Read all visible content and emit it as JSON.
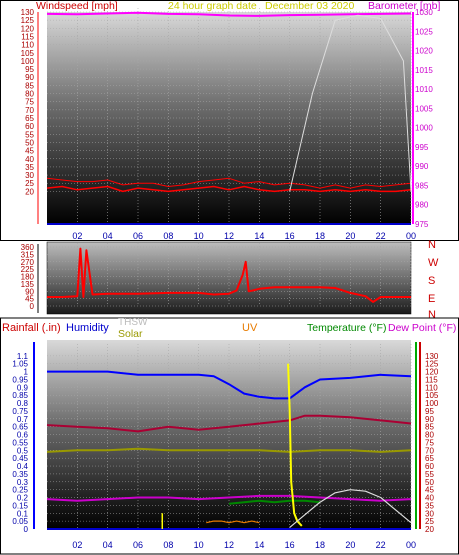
{
  "header": {
    "windspeed_label": "Windspeed [mph]",
    "graph_date": "24 hour graph date",
    "date": "December 03 2020",
    "barometer_label": "Barometer [mb]"
  },
  "compass_labels": [
    "N",
    "W",
    "S",
    "E",
    "N"
  ],
  "bottom_legend": {
    "rainfall": "Rainfall (.in)",
    "humidity": "Humidity",
    "thsw": "THSW",
    "solar": "Solar",
    "uv": "UV",
    "temperature": "Temperature (°F)",
    "dew_point": "Dew Point (°F)"
  },
  "colors": {
    "windspeed": "#ff0000",
    "gust": "#ff0000",
    "barometer": "#ff00ff",
    "direction": "#ff0000",
    "humidity": "#0000ff",
    "temperature": "#aa0033",
    "dew_point": "#cc00cc",
    "thsw": "#999900",
    "solar": "#e87b00",
    "uv": "#ffff00",
    "extra": "#dddddd",
    "green": "#008800"
  },
  "chart_data": [
    {
      "type": "line",
      "id": "wind_barometer",
      "x_tick_labels": [
        "02",
        "04",
        "06",
        "08",
        "10",
        "12",
        "14",
        "16",
        "18",
        "20",
        "22",
        "00"
      ],
      "xlim": [
        0,
        24
      ],
      "y_left": {
        "label": "Windspeed [mph]",
        "ylim": [
          0,
          130
        ],
        "ticks": [
          20,
          25,
          30,
          35,
          40,
          45,
          50,
          55,
          60,
          65,
          70,
          75,
          80,
          85,
          90,
          95,
          100,
          105,
          110,
          115,
          120,
          125,
          130
        ]
      },
      "y_right": {
        "label": "Barometer [mb]",
        "ylim": [
          975,
          1030
        ],
        "ticks": [
          975,
          980,
          985,
          990,
          995,
          1000,
          1005,
          1010,
          1015,
          1020,
          1025,
          1030
        ]
      },
      "series": [
        {
          "name": "Barometer [mb]",
          "axis": "right",
          "x": [
            0,
            2,
            4,
            6,
            8,
            10,
            12,
            14,
            16,
            18,
            20,
            22,
            24
          ],
          "values": [
            1029.5,
            1029.4,
            1029.6,
            1029.8,
            1029.5,
            1029.4,
            1029.1,
            1029.0,
            1029.2,
            1029.3,
            1029.4,
            1029.5,
            1029.6
          ]
        },
        {
          "name": "Windspeed [mph]",
          "axis": "left",
          "x": [
            0,
            1,
            2,
            3,
            4,
            5,
            6,
            7,
            8,
            9,
            10,
            11,
            12,
            13,
            14,
            15,
            16,
            17,
            18,
            19,
            20,
            21,
            22,
            23,
            24
          ],
          "values": [
            22,
            23,
            21,
            22,
            23,
            20,
            22,
            21,
            20,
            21,
            22,
            23,
            21,
            23,
            21,
            20,
            21,
            21,
            20,
            21,
            20,
            21,
            20,
            20,
            21
          ]
        },
        {
          "name": "",
          "axis": "left",
          "x": [
            0,
            1,
            2,
            3,
            4,
            5,
            6,
            7,
            8,
            9,
            10,
            11,
            12,
            13,
            14,
            15,
            16,
            17,
            18,
            19,
            20,
            21,
            22,
            23,
            24
          ],
          "values": [
            28,
            27,
            26,
            26,
            27,
            24,
            25,
            25,
            23,
            24,
            26,
            27,
            28,
            25,
            26,
            24,
            25,
            24,
            22,
            24,
            22,
            24,
            23,
            24,
            25
          ]
        }
      ]
    },
    {
      "type": "line",
      "id": "wind_direction",
      "x_tick_labels": [
        "02",
        "04",
        "06",
        "08",
        "10",
        "12",
        "14",
        "16",
        "18",
        "20",
        "22",
        "00"
      ],
      "xlim": [
        0,
        24
      ],
      "y_left": {
        "ylim": [
          0,
          360
        ],
        "ticks": [
          0,
          45,
          90,
          135,
          180,
          225,
          270,
          315,
          360
        ]
      },
      "series": [
        {
          "name": "",
          "x": [
            0,
            1,
            2.0,
            2.2,
            2.4,
            2.6,
            3,
            4,
            6,
            8,
            10,
            11,
            12,
            12.5,
            12.9,
            13.1,
            13.3,
            13.6,
            14,
            15,
            16,
            18,
            19,
            20,
            21,
            21.5,
            22,
            23,
            24
          ],
          "values": [
            55,
            55,
            60,
            350,
            55,
            340,
            70,
            75,
            75,
            80,
            80,
            70,
            75,
            95,
            190,
            270,
            90,
            95,
            105,
            115,
            115,
            115,
            110,
            80,
            60,
            25,
            55,
            55,
            55
          ]
        }
      ]
    },
    {
      "type": "line",
      "id": "weather",
      "x_tick_labels": [
        "02",
        "04",
        "06",
        "08",
        "10",
        "12",
        "14",
        "16",
        "18",
        "20",
        "22",
        "00"
      ],
      "xlim": [
        0,
        24
      ],
      "y_left": {
        "label": "Rainfall (.in)",
        "ylim": [
          0,
          1.15
        ],
        "ticks": [
          0,
          0.05,
          0.1,
          0.15,
          0.2,
          0.25,
          0.3,
          0.35,
          0.4,
          0.45,
          0.5,
          0.55,
          0.6,
          0.65,
          0.7,
          0.75,
          0.8,
          0.85,
          0.9,
          0.95,
          1,
          1.05,
          1.1
        ]
      },
      "y_right": {
        "label": "Temperature (°F)",
        "ylim": [
          20,
          135
        ],
        "ticks": [
          20,
          25,
          30,
          35,
          40,
          45,
          50,
          55,
          60,
          65,
          70,
          75,
          80,
          85,
          90,
          95,
          100,
          105,
          110,
          115,
          120,
          125,
          130
        ]
      },
      "series": [
        {
          "name": "Humidity",
          "axis": "right",
          "x": [
            0,
            2,
            4,
            6,
            8,
            10,
            11,
            12,
            13,
            14,
            15,
            16,
            17,
            18,
            20,
            22,
            24
          ],
          "values": [
            120,
            120,
            120,
            118,
            118,
            118,
            117,
            112,
            106,
            104,
            103,
            103,
            110,
            115,
            116,
            118,
            117
          ]
        },
        {
          "name": "Temperature (°F)",
          "axis": "right",
          "x": [
            0,
            2,
            4,
            6,
            8,
            10,
            12,
            14,
            16,
            17,
            18,
            20,
            22,
            24
          ],
          "values": [
            86,
            85,
            84,
            82,
            85,
            83,
            85,
            87,
            89,
            92,
            92,
            91,
            89,
            87
          ]
        },
        {
          "name": "THSW",
          "axis": "right",
          "x": [
            0,
            2,
            4,
            6,
            8,
            10,
            12,
            14,
            16,
            18,
            20,
            22,
            24
          ],
          "values": [
            69,
            70,
            70,
            71,
            70,
            70,
            70,
            70,
            69,
            70,
            70,
            69,
            70
          ]
        },
        {
          "name": "Dew Point (°F)",
          "axis": "right",
          "x": [
            0,
            2,
            4,
            6,
            8,
            10,
            12,
            14,
            16,
            18,
            20,
            22,
            24
          ],
          "values": [
            39,
            38,
            39,
            40,
            40,
            39,
            40,
            41,
            41,
            40,
            39,
            38,
            39
          ]
        },
        {
          "name": "",
          "axis": "right",
          "x": [
            12,
            13,
            14,
            15,
            16,
            17,
            18
          ],
          "values": [
            36,
            37,
            38,
            37,
            38,
            38,
            37
          ]
        },
        {
          "name": "Solar",
          "axis": "right",
          "x": [
            10.5,
            11,
            11.5,
            12,
            12.5,
            13,
            13.5,
            14
          ],
          "values": [
            24,
            25,
            25,
            24,
            25,
            24,
            25,
            24
          ]
        },
        {
          "name": "UV",
          "axis": "right",
          "x": [
            15.9,
            16.0,
            16.1,
            16.3,
            16.5,
            16.8
          ],
          "values": [
            125,
            95,
            50,
            30,
            25,
            22
          ]
        },
        {
          "name": "",
          "axis": "right",
          "x": [
            16,
            17,
            18,
            19,
            20,
            21,
            22,
            23,
            24
          ],
          "values": [
            21,
            29,
            37,
            43,
            45,
            44,
            40,
            32,
            24
          ]
        }
      ]
    }
  ]
}
